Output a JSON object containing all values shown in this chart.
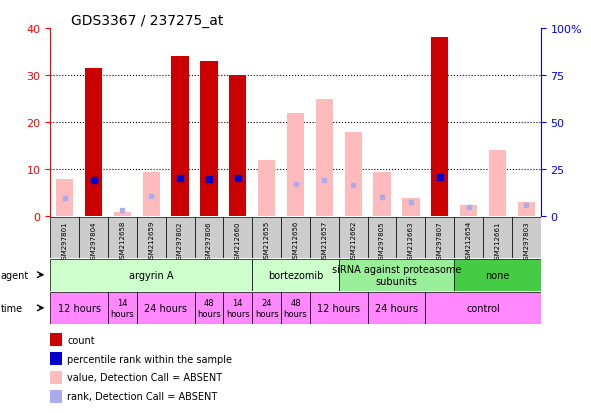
{
  "title": "GDS3367 / 237275_at",
  "samples": [
    "GSM297801",
    "GSM297804",
    "GSM212658",
    "GSM212659",
    "GSM297802",
    "GSM297806",
    "GSM212660",
    "GSM212655",
    "GSM212656",
    "GSM212657",
    "GSM212662",
    "GSM297805",
    "GSM212663",
    "GSM297807",
    "GSM212654",
    "GSM212661",
    "GSM297803"
  ],
  "count_values": [
    null,
    31.5,
    null,
    null,
    34.0,
    33.0,
    30.0,
    null,
    null,
    null,
    null,
    null,
    null,
    38.0,
    null,
    null,
    null
  ],
  "count_absent": [
    8.0,
    null,
    1.0,
    9.5,
    null,
    null,
    null,
    12.0,
    22.0,
    25.0,
    18.0,
    9.5,
    4.0,
    null,
    2.5,
    14.0,
    3.0
  ],
  "rank_present": [
    null,
    19.5,
    null,
    null,
    20.5,
    20.0,
    20.5,
    null,
    null,
    null,
    null,
    null,
    null,
    21.0,
    null,
    null,
    null
  ],
  "rank_absent": [
    10.0,
    null,
    3.5,
    11.0,
    null,
    null,
    null,
    null,
    17.0,
    19.5,
    16.5,
    10.5,
    7.5,
    null,
    5.0,
    null,
    6.0
  ],
  "ylim_left": [
    0,
    40
  ],
  "ylim_right": [
    0,
    100
  ],
  "yticks_left": [
    0,
    10,
    20,
    30,
    40
  ],
  "yticks_right": [
    0,
    25,
    50,
    75,
    100
  ],
  "ytick_labels_right": [
    "0",
    "25",
    "50",
    "75",
    "100%"
  ],
  "agent_groups": [
    {
      "label": "argyrin A",
      "start": 0,
      "end": 7,
      "color": "#ccffcc"
    },
    {
      "label": "bortezomib",
      "start": 7,
      "end": 10,
      "color": "#ccffcc"
    },
    {
      "label": "siRNA against proteasome\nsubunits",
      "start": 10,
      "end": 14,
      "color": "#99ee99"
    },
    {
      "label": "none",
      "start": 14,
      "end": 17,
      "color": "#44cc44"
    }
  ],
  "time_groups": [
    {
      "label": "12 hours",
      "start": 0,
      "end": 2,
      "fontsize": 7
    },
    {
      "label": "14\nhours",
      "start": 2,
      "end": 3,
      "fontsize": 6
    },
    {
      "label": "24 hours",
      "start": 3,
      "end": 5,
      "fontsize": 7
    },
    {
      "label": "48\nhours",
      "start": 5,
      "end": 6,
      "fontsize": 6
    },
    {
      "label": "14\nhours",
      "start": 6,
      "end": 7,
      "fontsize": 6
    },
    {
      "label": "24\nhours",
      "start": 7,
      "end": 8,
      "fontsize": 6
    },
    {
      "label": "48\nhours",
      "start": 8,
      "end": 9,
      "fontsize": 6
    },
    {
      "label": "12 hours",
      "start": 9,
      "end": 11,
      "fontsize": 7
    },
    {
      "label": "24 hours",
      "start": 11,
      "end": 13,
      "fontsize": 7
    },
    {
      "label": "control",
      "start": 13,
      "end": 17,
      "fontsize": 7
    }
  ],
  "count_color": "#cc0000",
  "count_absent_color": "#ffbbbb",
  "rank_present_color": "#0000cc",
  "rank_absent_color": "#aaaaee",
  "sample_bg_color": "#cccccc",
  "agent_row_color": "#ccffcc",
  "time_row_color": "#ff88ff",
  "legend_items": [
    {
      "color": "#cc0000",
      "label": "count"
    },
    {
      "color": "#0000cc",
      "label": "percentile rank within the sample"
    },
    {
      "color": "#ffbbbb",
      "label": "value, Detection Call = ABSENT"
    },
    {
      "color": "#aaaaee",
      "label": "rank, Detection Call = ABSENT"
    }
  ]
}
